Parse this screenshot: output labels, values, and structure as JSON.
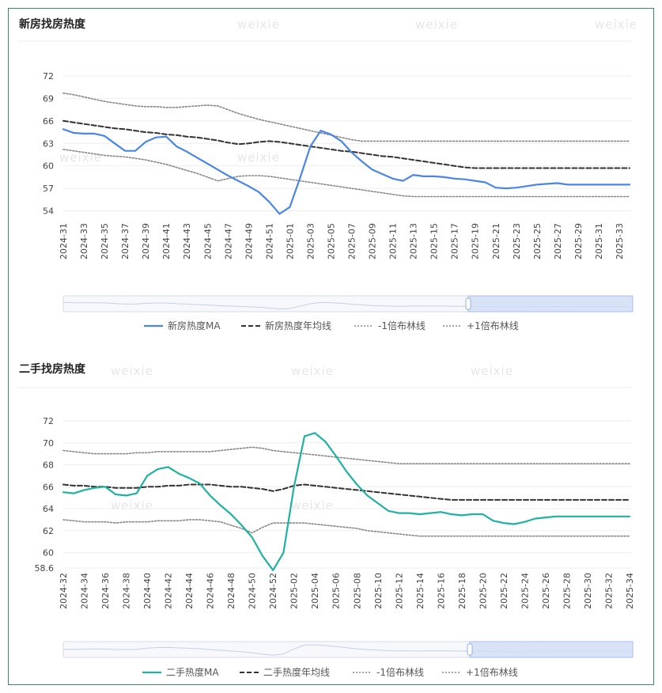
{
  "watermark": "weixie",
  "chart_data": [
    {
      "type": "line",
      "title": "新房找房热度",
      "x": [
        "2024-31",
        "2024-32",
        "2024-33",
        "2024-34",
        "2024-35",
        "2024-36",
        "2024-37",
        "2024-38",
        "2024-39",
        "2024-40",
        "2024-41",
        "2024-42",
        "2024-43",
        "2024-44",
        "2024-45",
        "2024-46",
        "2024-47",
        "2024-48",
        "2024-49",
        "2024-50",
        "2024-51",
        "2024-52",
        "2025-01",
        "2025-02",
        "2025-03",
        "2025-04",
        "2025-05",
        "2025-06",
        "2025-07",
        "2025-08",
        "2025-09",
        "2025-10",
        "2025-11",
        "2025-12",
        "2025-13",
        "2025-14",
        "2025-15",
        "2025-16",
        "2025-17",
        "2025-18",
        "2025-19",
        "2025-20",
        "2025-21",
        "2025-22",
        "2025-23",
        "2025-24",
        "2025-25",
        "2025-26",
        "2025-27",
        "2025-28",
        "2025-29",
        "2025-30",
        "2025-31",
        "2025-32",
        "2025-33",
        "2025-34"
      ],
      "x_tick_labels": [
        "2024-31",
        "2024-33",
        "2024-35",
        "2024-37",
        "2024-39",
        "2024-41",
        "2024-43",
        "2024-45",
        "2024-47",
        "2024-49",
        "2024-51",
        "2025-01",
        "2025-03",
        "2025-05",
        "2025-07",
        "2025-09",
        "2025-11",
        "2025-13",
        "2025-15",
        "2025-17",
        "2025-19",
        "2025-21",
        "2025-23",
        "2025-25",
        "2025-27",
        "2025-29",
        "2025-31",
        "2025-33"
      ],
      "y_ticks": [
        54,
        57,
        60,
        63,
        66,
        69,
        72
      ],
      "ylim": [
        53,
        72
      ],
      "series": [
        {
          "name": "新房热度MA",
          "style": "solid",
          "color": "#4a86e8",
          "values": [
            64.9,
            64.4,
            64.3,
            64.3,
            64.0,
            63.0,
            62.0,
            62.0,
            63.2,
            63.8,
            63.9,
            62.6,
            61.9,
            61.1,
            60.3,
            59.5,
            58.7,
            58.0,
            57.3,
            56.5,
            55.2,
            53.6,
            54.5,
            58.4,
            62.6,
            64.7,
            64.2,
            63.3,
            61.8,
            60.6,
            59.5,
            58.9,
            58.3,
            58.0,
            58.8,
            58.6,
            58.6,
            58.5,
            58.3,
            58.2,
            58.0,
            57.8,
            57.1,
            57.0,
            57.1,
            57.3,
            57.5,
            57.6,
            57.7,
            57.5,
            57.5,
            57.5,
            57.5,
            57.5,
            57.5,
            57.5
          ]
        },
        {
          "name": "新房热度年均线",
          "style": "dashed",
          "color": "#333333",
          "values": [
            66.0,
            65.8,
            65.6,
            65.4,
            65.2,
            65.0,
            64.9,
            64.7,
            64.5,
            64.4,
            64.2,
            64.1,
            63.9,
            63.8,
            63.6,
            63.4,
            63.1,
            62.9,
            63.0,
            63.2,
            63.3,
            63.2,
            63.0,
            62.8,
            62.6,
            62.4,
            62.2,
            62.0,
            61.9,
            61.7,
            61.5,
            61.3,
            61.2,
            61.0,
            60.8,
            60.6,
            60.4,
            60.2,
            60.0,
            59.8,
            59.7,
            59.7,
            59.7,
            59.7,
            59.7,
            59.7,
            59.7,
            59.7,
            59.7,
            59.7,
            59.7,
            59.7,
            59.7,
            59.7,
            59.7,
            59.7
          ]
        },
        {
          "name": "-1倍布林线",
          "style": "dotted",
          "color": "#888888",
          "values": [
            62.2,
            62.0,
            61.8,
            61.6,
            61.4,
            61.3,
            61.2,
            61.0,
            60.8,
            60.5,
            60.2,
            59.8,
            59.4,
            59.0,
            58.5,
            58.0,
            58.3,
            58.6,
            58.7,
            58.7,
            58.6,
            58.4,
            58.2,
            58.0,
            57.8,
            57.6,
            57.4,
            57.2,
            57.0,
            56.8,
            56.6,
            56.4,
            56.2,
            56.0,
            55.9,
            55.9,
            55.9,
            55.9,
            55.9,
            55.9,
            55.9,
            55.9,
            55.9,
            55.9,
            55.9,
            55.9,
            55.9,
            55.9,
            55.9,
            55.9,
            55.9,
            55.9,
            55.9,
            55.9,
            55.9,
            55.9
          ]
        },
        {
          "name": "+1倍布林线",
          "style": "dotted",
          "color": "#888888",
          "values": [
            69.7,
            69.5,
            69.2,
            68.9,
            68.6,
            68.4,
            68.2,
            68.0,
            67.9,
            67.9,
            67.8,
            67.8,
            67.9,
            68.0,
            68.1,
            68.0,
            67.5,
            67.0,
            66.6,
            66.2,
            65.9,
            65.6,
            65.3,
            65.0,
            64.7,
            64.4,
            64.1,
            63.8,
            63.5,
            63.3,
            63.3,
            63.3,
            63.3,
            63.3,
            63.3,
            63.3,
            63.3,
            63.3,
            63.3,
            63.3,
            63.3,
            63.3,
            63.3,
            63.3,
            63.3,
            63.3,
            63.3,
            63.3,
            63.3,
            63.3,
            63.3,
            63.3,
            63.3,
            63.3,
            63.3,
            63.3
          ]
        }
      ],
      "legend_position": "bottom",
      "grid": true
    },
    {
      "type": "line",
      "title": "二手找房热度",
      "x": [
        "2024-32",
        "2024-33",
        "2024-34",
        "2024-35",
        "2024-36",
        "2024-37",
        "2024-38",
        "2024-39",
        "2024-40",
        "2024-41",
        "2024-42",
        "2024-43",
        "2024-44",
        "2024-45",
        "2024-46",
        "2024-47",
        "2024-48",
        "2024-49",
        "2024-50",
        "2024-51",
        "2024-52",
        "2025-01",
        "2025-02",
        "2025-03",
        "2025-04",
        "2025-05",
        "2025-06",
        "2025-07",
        "2025-08",
        "2025-09",
        "2025-10",
        "2025-11",
        "2025-12",
        "2025-13",
        "2025-14",
        "2025-15",
        "2025-16",
        "2025-17",
        "2025-18",
        "2025-19",
        "2025-20",
        "2025-21",
        "2025-22",
        "2025-23",
        "2025-24",
        "2025-25",
        "2025-26",
        "2025-27",
        "2025-28",
        "2025-29",
        "2025-30",
        "2025-31",
        "2025-32",
        "2025-33",
        "2025-34"
      ],
      "x_tick_labels": [
        "2024-32",
        "2024-34",
        "2024-36",
        "2024-38",
        "2024-40",
        "2024-42",
        "2024-44",
        "2024-46",
        "2024-48",
        "2024-50",
        "2024-52",
        "2025-02",
        "2025-04",
        "2025-06",
        "2025-08",
        "2025-10",
        "2025-12",
        "2025-14",
        "2025-16",
        "2025-18",
        "2025-20",
        "2025-22",
        "2025-24",
        "2025-26",
        "2025-28",
        "2025-30",
        "2025-32",
        "2025-34"
      ],
      "y_ticks": [
        58.6,
        60,
        62,
        64,
        66,
        68,
        70,
        72
      ],
      "ylim": [
        58.6,
        72
      ],
      "series": [
        {
          "name": "二手热度MA",
          "style": "solid",
          "color": "#20b2a0",
          "values": [
            65.5,
            65.4,
            65.7,
            65.9,
            66.0,
            65.3,
            65.2,
            65.4,
            67.0,
            67.6,
            67.8,
            67.2,
            66.8,
            66.3,
            65.2,
            64.3,
            63.5,
            62.5,
            61.4,
            59.7,
            58.4,
            60.0,
            66.0,
            70.6,
            70.9,
            70.1,
            68.8,
            67.4,
            66.2,
            65.2,
            64.5,
            63.8,
            63.6,
            63.6,
            63.5,
            63.6,
            63.7,
            63.5,
            63.4,
            63.5,
            63.5,
            62.9,
            62.7,
            62.6,
            62.8,
            63.1,
            63.2,
            63.3,
            63.3,
            63.3,
            63.3,
            63.3,
            63.3,
            63.3,
            63.3
          ]
        },
        {
          "name": "二手热度年均线",
          "style": "dashed",
          "color": "#333333",
          "values": [
            66.2,
            66.1,
            66.1,
            66.0,
            66.0,
            65.9,
            65.9,
            65.9,
            66.0,
            66.0,
            66.1,
            66.1,
            66.2,
            66.2,
            66.2,
            66.1,
            66.0,
            66.0,
            65.9,
            65.8,
            65.6,
            65.8,
            66.1,
            66.2,
            66.1,
            66.0,
            65.9,
            65.8,
            65.7,
            65.6,
            65.5,
            65.4,
            65.3,
            65.2,
            65.1,
            65.0,
            64.9,
            64.8,
            64.8,
            64.8,
            64.8,
            64.8,
            64.8,
            64.8,
            64.8,
            64.8,
            64.8,
            64.8,
            64.8,
            64.8,
            64.8,
            64.8,
            64.8,
            64.8,
            64.8
          ]
        },
        {
          "name": "-1倍布林线",
          "style": "dotted",
          "color": "#888888",
          "values": [
            63.0,
            62.9,
            62.8,
            62.8,
            62.8,
            62.7,
            62.8,
            62.8,
            62.8,
            62.9,
            62.9,
            62.9,
            63.0,
            63.0,
            62.9,
            62.8,
            62.5,
            62.2,
            61.8,
            62.3,
            62.7,
            62.7,
            62.7,
            62.7,
            62.6,
            62.5,
            62.4,
            62.3,
            62.2,
            62.0,
            61.9,
            61.8,
            61.7,
            61.6,
            61.5,
            61.5,
            61.5,
            61.5,
            61.5,
            61.5,
            61.5,
            61.5,
            61.5,
            61.5,
            61.5,
            61.5,
            61.5,
            61.5,
            61.5,
            61.5,
            61.5,
            61.5,
            61.5,
            61.5,
            61.5
          ]
        },
        {
          "name": "+1倍布林线",
          "style": "dotted",
          "color": "#888888",
          "values": [
            69.3,
            69.2,
            69.1,
            69.0,
            69.0,
            69.0,
            69.0,
            69.1,
            69.1,
            69.2,
            69.2,
            69.2,
            69.2,
            69.2,
            69.2,
            69.3,
            69.4,
            69.5,
            69.6,
            69.5,
            69.3,
            69.2,
            69.1,
            69.0,
            68.9,
            68.8,
            68.7,
            68.6,
            68.5,
            68.4,
            68.3,
            68.2,
            68.1,
            68.1,
            68.1,
            68.1,
            68.1,
            68.1,
            68.1,
            68.1,
            68.1,
            68.1,
            68.1,
            68.1,
            68.1,
            68.1,
            68.1,
            68.1,
            68.1,
            68.1,
            68.1,
            68.1,
            68.1,
            68.1,
            68.1
          ]
        }
      ],
      "legend_position": "bottom",
      "grid": true
    }
  ]
}
